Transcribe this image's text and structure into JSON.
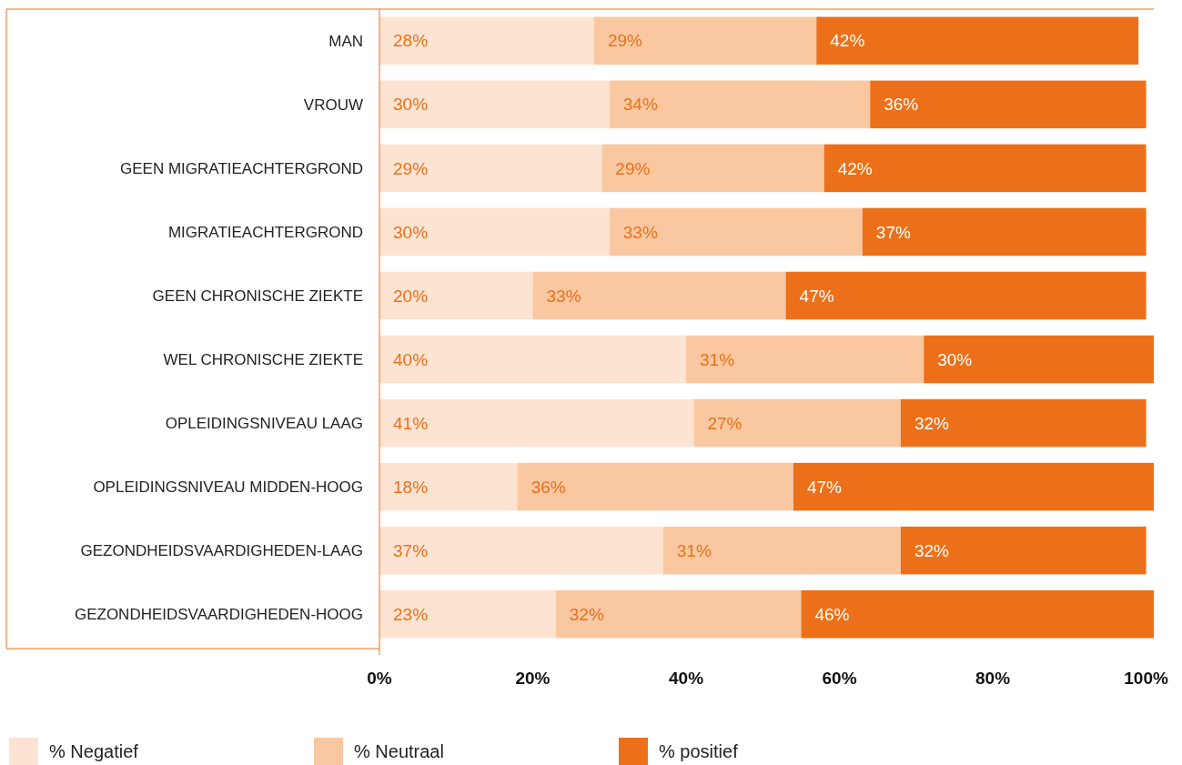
{
  "chart_data": {
    "type": "bar",
    "orientation": "horizontal",
    "stacked": true,
    "legend": "bottom",
    "grid": false,
    "categories": [
      "MAN",
      "VROUW",
      "GEEN MIGRATIEACHTERGROND",
      "MIGRATIEACHTERGROND",
      "GEEN CHRONISCHE ZIEKTE",
      "WEL CHRONISCHE ZIEKTE",
      "OPLEIDINGSNIVEAU LAAG",
      "OPLEIDINGSNIVEAU MIDDEN-HOOG",
      "GEZONDHEIDSVAARDIGHEDEN-LAAG",
      "GEZONDHEIDSVAARDIGHEDEN-HOOG"
    ],
    "series": [
      {
        "name": "% Negatief",
        "color": "#fde3d2",
        "values": [
          28,
          30,
          29,
          30,
          20,
          40,
          41,
          18,
          37,
          23
        ],
        "value_labels": [
          "28%",
          "30%",
          "29%",
          "30%",
          "20%",
          "40%",
          "41%",
          "18%",
          "37%",
          "23%"
        ]
      },
      {
        "name": "% Neutraal",
        "color": "#f9c8a0",
        "values": [
          29,
          34,
          29,
          33,
          33,
          31,
          27,
          36,
          31,
          32
        ],
        "value_labels": [
          "29%",
          "34%",
          "29%",
          "33%",
          "33%",
          "31%",
          "27%",
          "36%",
          "31%",
          "32%"
        ]
      },
      {
        "name": "% positief",
        "color": "#ec7019",
        "values": [
          42,
          36,
          42,
          37,
          47,
          30,
          32,
          47,
          32,
          46
        ],
        "value_labels": [
          "42%",
          "36%",
          "42%",
          "37%",
          "47%",
          "30%",
          "32%",
          "47%",
          "32%",
          "46%"
        ]
      }
    ],
    "xlim": [
      0,
      101
    ],
    "xticks": [
      {
        "value": 0,
        "label": "0%"
      },
      {
        "value": 20,
        "label": "20%"
      },
      {
        "value": 40,
        "label": "40%"
      },
      {
        "value": 60,
        "label": "60%"
      },
      {
        "value": 80,
        "label": "80%"
      },
      {
        "value": 100,
        "label": "100%"
      }
    ]
  }
}
